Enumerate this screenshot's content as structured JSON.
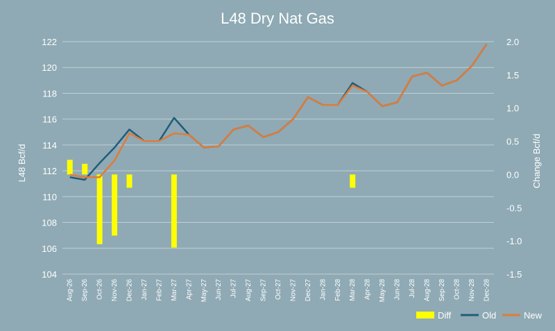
{
  "colors": {
    "background": "#8faab4",
    "diff": "#ffff00",
    "old": "#1f5d7a",
    "new": "#e07b39",
    "grid": "#ffffff"
  },
  "chart_data": {
    "type": "line",
    "title": "L48 Dry Nat Gas",
    "ylabel": "L48 Bcf/d",
    "y2label": "Change Bcf/d",
    "ylim": [
      104,
      122
    ],
    "y2lim": [
      -1.5,
      2.0
    ],
    "yticks": [
      "104",
      "106",
      "108",
      "110",
      "112",
      "114",
      "116",
      "118",
      "120",
      "122"
    ],
    "y2ticks": [
      "-1.5",
      "-1.0",
      "-0.5",
      "0.0",
      "0.5",
      "1.0",
      "1.5",
      "2.0"
    ],
    "grid": true,
    "legend_position": "bottom-right",
    "categories": [
      "Aug-26",
      "Sep-26",
      "Oct-26",
      "Nov-26",
      "Dec-26",
      "Jan-27",
      "Feb-27",
      "Mar-27",
      "Apr-27",
      "May-27",
      "Jun-27",
      "Jul-27",
      "Aug-27",
      "Sep-27",
      "Oct-27",
      "Nov-27",
      "Dec-27",
      "Jan-28",
      "Feb-28",
      "Mar-28",
      "Apr-28",
      "May-28",
      "Jun-28",
      "Jul-28",
      "Aug-28",
      "Sep-28",
      "Oct-28",
      "Nov-28",
      "Dec-28"
    ],
    "series": [
      {
        "name": "Diff",
        "type": "bar",
        "axis": "right",
        "values": [
          0.22,
          0.16,
          -1.05,
          -0.92,
          -0.2,
          0,
          0,
          -1.1,
          0,
          0,
          0,
          0,
          0,
          0,
          0,
          0,
          0,
          0,
          0,
          -0.2,
          0,
          0,
          0,
          0,
          0,
          0,
          0,
          0,
          0
        ]
      },
      {
        "name": "Old",
        "type": "line",
        "axis": "left",
        "values": [
          111.5,
          111.3,
          112.6,
          113.8,
          115.2,
          114.3,
          114.3,
          116.1,
          114.8,
          113.8,
          113.9,
          115.2,
          115.5,
          114.6,
          115.0,
          116.0,
          117.7,
          117.1,
          117.1,
          118.8,
          118.1,
          117.0,
          117.3,
          119.3,
          119.6,
          118.6,
          119.0,
          120.1,
          121.8
        ]
      },
      {
        "name": "New",
        "type": "line",
        "axis": "left",
        "values": [
          111.7,
          111.5,
          111.5,
          112.8,
          114.9,
          114.3,
          114.3,
          114.9,
          114.8,
          113.8,
          113.9,
          115.2,
          115.5,
          114.6,
          115.0,
          116.0,
          117.7,
          117.1,
          117.1,
          118.6,
          118.1,
          117.0,
          117.3,
          119.3,
          119.6,
          118.6,
          119.0,
          120.1,
          121.8
        ]
      }
    ]
  }
}
